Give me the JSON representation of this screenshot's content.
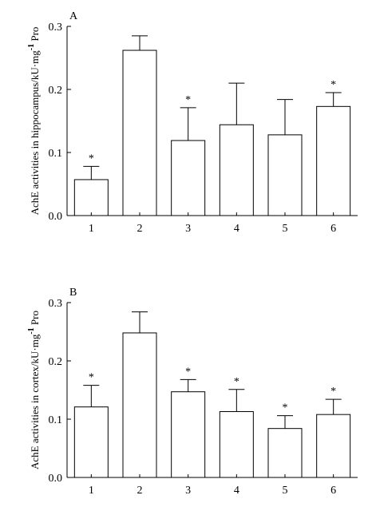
{
  "chart_data": [
    {
      "type": "bar",
      "panel_label": "A",
      "ylabel": "AchE activities in hippocampus/kU·mg",
      "ylabel_superscript": "-1",
      "ylabel_suffix": " Pro",
      "categories": [
        "1",
        "2",
        "3",
        "4",
        "5",
        "6"
      ],
      "values": [
        0.057,
        0.262,
        0.119,
        0.144,
        0.128,
        0.173
      ],
      "errors": [
        0.021,
        0.023,
        0.052,
        0.066,
        0.056,
        0.022
      ],
      "significance": [
        "*",
        "",
        "*",
        "",
        "",
        "*"
      ],
      "ylim": [
        0,
        0.3
      ],
      "yticks": [
        "0.0",
        "0.1",
        "0.2",
        "0.3"
      ],
      "ytick_values": [
        0,
        0.1,
        0.2,
        0.3
      ]
    },
    {
      "type": "bar",
      "panel_label": "B",
      "ylabel": "AchE activities in cortex/kU·mg",
      "ylabel_superscript": "-1",
      "ylabel_suffix": " Pro",
      "categories": [
        "1",
        "2",
        "3",
        "4",
        "5",
        "6"
      ],
      "values": [
        0.121,
        0.248,
        0.147,
        0.113,
        0.084,
        0.108
      ],
      "errors": [
        0.037,
        0.036,
        0.021,
        0.038,
        0.022,
        0.026
      ],
      "significance": [
        "*",
        "",
        "*",
        "*",
        "*",
        "*"
      ],
      "ylim": [
        0,
        0.3
      ],
      "yticks": [
        "0.0",
        "0.1",
        "0.2",
        "0.3"
      ],
      "ytick_values": [
        0,
        0.1,
        0.2,
        0.3
      ]
    }
  ]
}
